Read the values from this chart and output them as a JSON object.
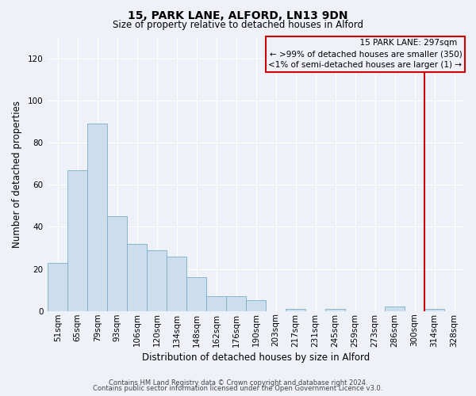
{
  "title": "15, PARK LANE, ALFORD, LN13 9DN",
  "subtitle": "Size of property relative to detached houses in Alford",
  "xlabel": "Distribution of detached houses by size in Alford",
  "ylabel": "Number of detached properties",
  "bar_labels": [
    "51sqm",
    "65sqm",
    "79sqm",
    "93sqm",
    "106sqm",
    "120sqm",
    "134sqm",
    "148sqm",
    "162sqm",
    "176sqm",
    "190sqm",
    "203sqm",
    "217sqm",
    "231sqm",
    "245sqm",
    "259sqm",
    "273sqm",
    "286sqm",
    "300sqm",
    "314sqm",
    "328sqm"
  ],
  "bar_values": [
    23,
    67,
    89,
    45,
    32,
    29,
    26,
    16,
    7,
    7,
    5,
    0,
    1,
    0,
    1,
    0,
    0,
    2,
    0,
    1,
    0
  ],
  "bar_color": "#ccdded",
  "bar_edge_color": "#7aaec8",
  "ylim": [
    0,
    130
  ],
  "yticks": [
    0,
    20,
    40,
    60,
    80,
    100,
    120
  ],
  "vline_x": 18.5,
  "vline_color": "#cc0000",
  "annotation_title": "15 PARK LANE: 297sqm",
  "annotation_line1": "← >99% of detached houses are smaller (350)",
  "annotation_line2": "<1% of semi-detached houses are larger (1) →",
  "annotation_box_color": "#cc0000",
  "footer_line1": "Contains HM Land Registry data © Crown copyright and database right 2024.",
  "footer_line2": "Contains public sector information licensed under the Open Government Licence v3.0.",
  "background_color": "#eef2f8",
  "grid_color": "#ffffff",
  "title_fontsize": 10,
  "subtitle_fontsize": 8.5,
  "xlabel_fontsize": 8.5,
  "ylabel_fontsize": 8.5,
  "tick_fontsize": 7.5,
  "annotation_fontsize": 7.5,
  "footer_fontsize": 6.0
}
